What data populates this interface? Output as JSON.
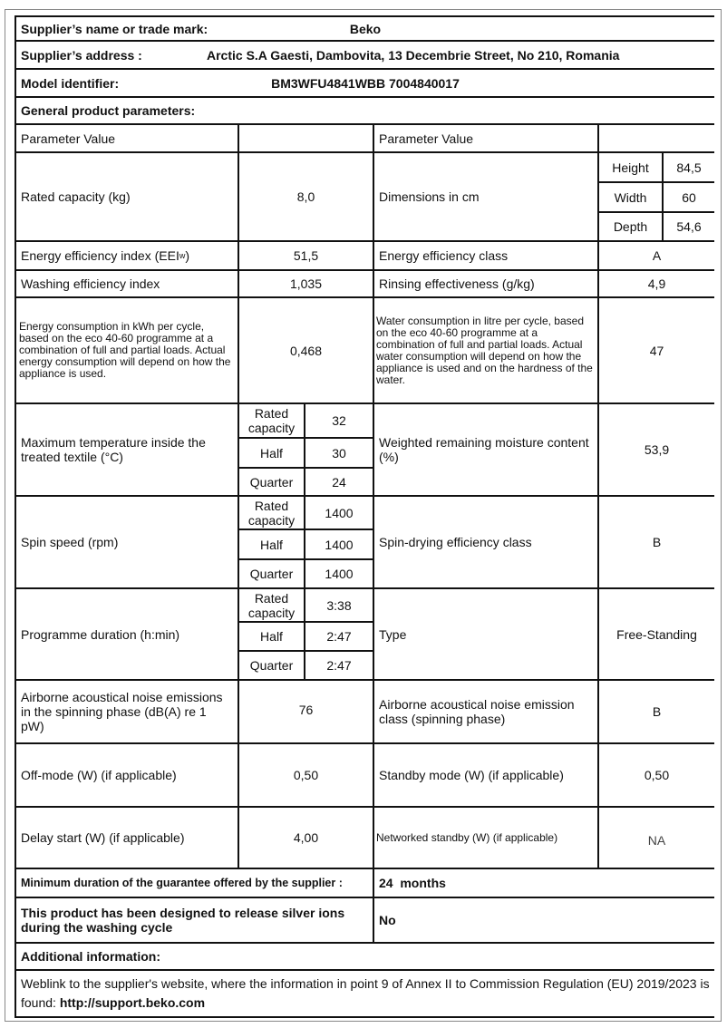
{
  "supplier": {
    "label": "Supplier’s name or trade mark:",
    "value": "Beko"
  },
  "address": {
    "label": "Supplier’s address :",
    "value": "Arctic S.A  Gaesti, Dambovita, 13 Decembrie Street, No 210, Romania"
  },
  "model": {
    "label": "Model identifier:",
    "value": "BM3WFU4841WBB 7004840017"
  },
  "general_title": "General product parameters:",
  "header": {
    "left": "Parameter Value",
    "right": "Parameter Value"
  },
  "rated_capacity": {
    "label": "Rated capacity (kg)",
    "value": "8,0"
  },
  "dimensions": {
    "label": "Dimensions in cm",
    "rows": [
      {
        "k": "Height",
        "v": "84,5"
      },
      {
        "k": "Width",
        "v": "60"
      },
      {
        "k": "Depth",
        "v": "54,6"
      }
    ]
  },
  "eei": {
    "label": "Energy efficiency index (EEI",
    "sub": "w",
    "label_end": " )",
    "value": "51,5"
  },
  "energy_class": {
    "label": "Energy efficiency class",
    "value": "A"
  },
  "washing": {
    "label": "Washing efficiency index",
    "value": "1,035"
  },
  "rinsing": {
    "label": "Rinsing effectiveness (g/kg)",
    "value": "4,9"
  },
  "energy_consumption": {
    "label": "Energy consumption in kWh per cycle, based on the eco 40-60 programme at a combination of full and partial loads. Actual energy consumption will depend on how the appliance is used.",
    "value": "0,468"
  },
  "water_consumption": {
    "label": "Water consumption in litre per cycle, based on the eco 40-60 programme at a combination of full and partial loads. Actual water consumption will depend on how the appliance is used and on the hardness of the water.",
    "value": "47"
  },
  "max_temp": {
    "label": "Maximum temperature inside the treated textile (°C)",
    "rows": [
      {
        "k": "Rated capacity",
        "v": "32"
      },
      {
        "k": "Half",
        "v": "30"
      },
      {
        "k": "Quarter",
        "v": "24"
      }
    ]
  },
  "moisture": {
    "label": "Weighted remaining moisture content (%)",
    "value": "53,9"
  },
  "spin_speed": {
    "label": "Spin speed (rpm)",
    "rows": [
      {
        "k": "Rated capacity",
        "v": "1400"
      },
      {
        "k": "Half",
        "v": "1400"
      },
      {
        "k": "Quarter",
        "v": "1400"
      }
    ]
  },
  "spin_class": {
    "label": "Spin-drying efficiency class",
    "value": "B"
  },
  "duration": {
    "label": "Programme duration (h:min)",
    "rows": [
      {
        "k": "Rated capacity",
        "v": "3:38"
      },
      {
        "k": "Half",
        "v": "2:47"
      },
      {
        "k": "Quarter",
        "v": "2:47"
      }
    ]
  },
  "type": {
    "label": "Type",
    "value": "Free-Standing"
  },
  "noise": {
    "label": "Airborne acoustical noise emissions in the spinning phase (dB(A) re 1 pW)",
    "value": "76"
  },
  "noise_class": {
    "label": "Airborne acoustical noise emission class (spinning phase)",
    "value": "B"
  },
  "off_mode": {
    "label": "Off-mode (W) (if applicable)",
    "value": "0,50"
  },
  "standby": {
    "label": "Standby mode (W) (if applicable)",
    "value": "0,50"
  },
  "delay": {
    "label": "Delay start (W) (if applicable)",
    "value": "4,00"
  },
  "networked": {
    "label": "Networked standby (W) (if applicable)",
    "value": "NA"
  },
  "guarantee": {
    "label": "Minimum duration of the guarantee offered by the supplier :",
    "value": "24  months"
  },
  "silver": {
    "label": "This product has been designed to release silver ions during the washing cycle",
    "value": "No"
  },
  "additional_title": "Additional information:",
  "weblink": {
    "text": "Weblink to the supplier's website, where the information in point 9 of Annex II to Commission Regulation (EU) 2019/2023 is found: ",
    "url": "http://support.beko.com"
  }
}
